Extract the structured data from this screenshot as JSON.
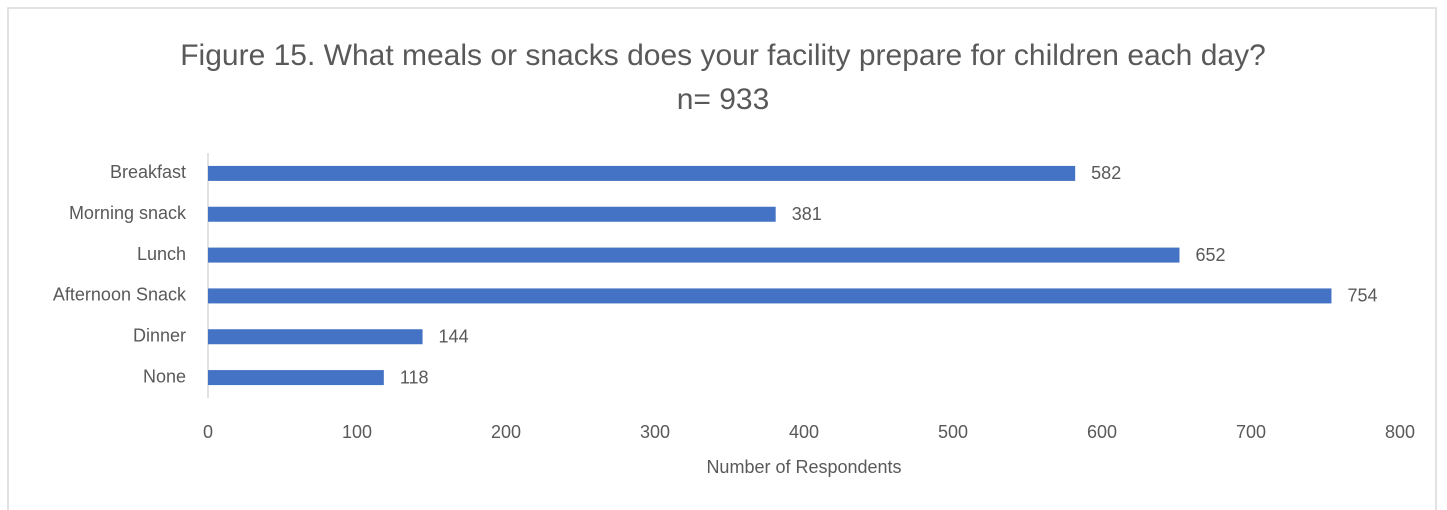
{
  "chart_data": {
    "type": "bar",
    "orientation": "horizontal",
    "title": "Figure 15. What meals or snacks does your facility prepare for children each day? n= 933",
    "categories": [
      "Breakfast",
      "Morning snack",
      "Lunch",
      "Afternoon Snack",
      "Dinner",
      "None"
    ],
    "values": [
      582,
      381,
      652,
      754,
      144,
      118
    ],
    "color": "#4472c4",
    "xlabel": "Number of Respondents",
    "xlim": [
      0,
      800
    ],
    "xticks": [
      0,
      100,
      200,
      300,
      400,
      500,
      600,
      700,
      800
    ],
    "grid": false
  }
}
